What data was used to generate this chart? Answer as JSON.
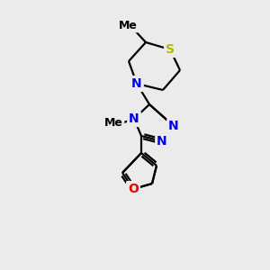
{
  "bg_color": "#ebebeb",
  "bond_color": "#000000",
  "atom_colors": {
    "S": "#b8b800",
    "N": "#0000ee",
    "O": "#ee0000",
    "C": "#000000"
  },
  "font_size_atom": 10,
  "font_size_methyl": 9,
  "figsize": [
    3.0,
    3.0
  ],
  "dpi": 100,
  "lw": 1.6
}
